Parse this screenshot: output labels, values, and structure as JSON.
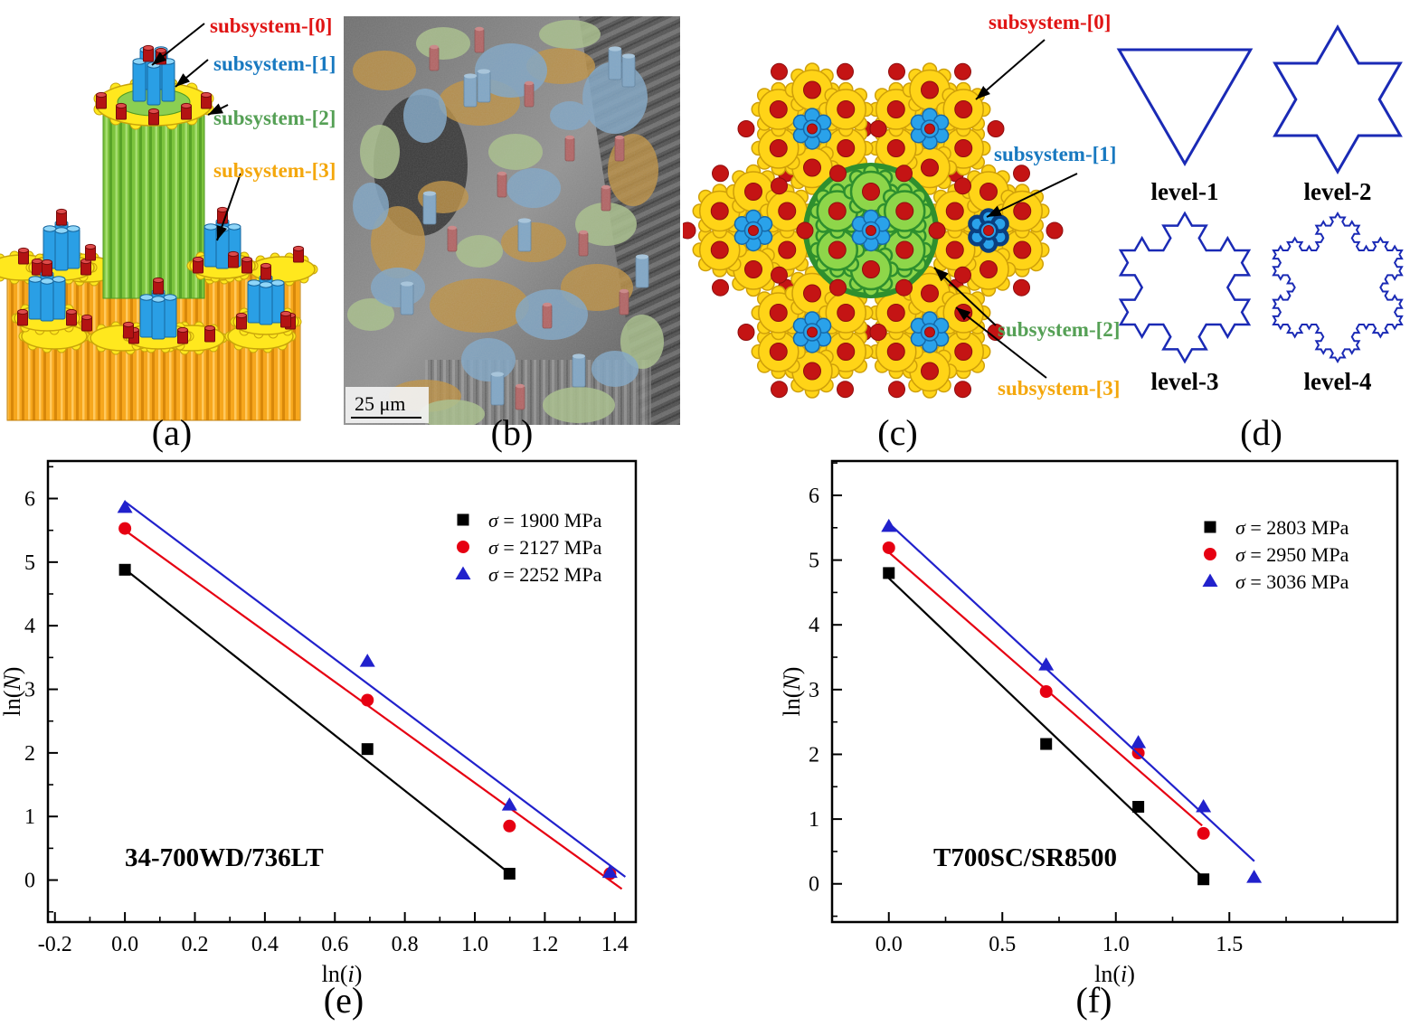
{
  "figure": {
    "panels": {
      "a": {
        "caption": "(a)",
        "labels": [
          {
            "text": "subsystem-[0]",
            "color": "#e01414"
          },
          {
            "text": "subsystem-[1]",
            "color": "#1879c0"
          },
          {
            "text": "subsystem-[2]",
            "color": "#55a055"
          },
          {
            "text": "subsystem-[3]",
            "color": "#f4a70c"
          }
        ]
      },
      "b": {
        "caption": "(b)",
        "scale_bar": "25 μm"
      },
      "c": {
        "caption": "(c)",
        "labels": [
          {
            "text": "subsystem-[0]",
            "color": "#e01414"
          },
          {
            "text": "subsystem-[1]",
            "color": "#1879c0"
          },
          {
            "text": "subsystem-[2]",
            "color": "#55a055"
          },
          {
            "text": "subsystem-[3]",
            "color": "#f4a70c"
          }
        ]
      },
      "d": {
        "caption": "(d)",
        "levels": [
          "level-1",
          "level-2",
          "level-3",
          "level-4"
        ]
      },
      "e": {
        "caption": "(e)"
      },
      "f": {
        "caption": "(f)"
      }
    }
  },
  "chart_data": [
    {
      "id": "e",
      "type": "scatter",
      "annotation": "34-700WD/736LT",
      "xlabel": "ln(i)",
      "ylabel": "ln(N)",
      "xlim": [
        -0.22,
        1.46
      ],
      "ylim": [
        -0.66,
        6.59
      ],
      "xticks": [
        "-0.2",
        "0.0",
        "0.2",
        "0.4",
        "0.6",
        "0.8",
        "1.0",
        "1.2",
        "1.4"
      ],
      "yticks": [
        "0",
        "1",
        "2",
        "3",
        "4",
        "5",
        "6"
      ],
      "x_minor_step": 0.1,
      "y_minor_step": 0.5,
      "grid": false,
      "legend_position": "top-right",
      "series": [
        {
          "name": "σ = 1900 MPa",
          "marker": "square",
          "color": "#000000",
          "x": [
            0,
            0.693,
            1.099
          ],
          "y": [
            4.88,
            2.06,
            0.1
          ],
          "fit_line": [
            [
              0,
              4.89
            ],
            [
              1.1,
              0.1
            ]
          ]
        },
        {
          "name": "σ = 2127 MPa",
          "marker": "circle",
          "color": "#e60012",
          "x": [
            0,
            0.693,
            1.099,
            1.386
          ],
          "y": [
            5.53,
            2.83,
            0.85,
            0.1
          ],
          "fit_line": [
            [
              0,
              5.5
            ],
            [
              1.42,
              -0.14
            ]
          ]
        },
        {
          "name": "σ = 2252 MPa",
          "marker": "triangle",
          "color": "#2121cc",
          "x": [
            0,
            0.693,
            1.099,
            1.386
          ],
          "y": [
            5.86,
            3.44,
            1.18,
            0.12
          ],
          "fit_line": [
            [
              0,
              5.95
            ],
            [
              1.43,
              0.05
            ]
          ]
        }
      ]
    },
    {
      "id": "f",
      "type": "scatter",
      "annotation": "T700SC/SR8500",
      "xlabel": "ln(i)",
      "ylabel": "ln(N)",
      "xlim": [
        -0.25,
        2.24
      ],
      "ylim": [
        -0.59,
        6.53
      ],
      "xticks": [
        "0.0",
        "0.5",
        "1.0",
        "1.5"
      ],
      "yticks": [
        "0",
        "1",
        "2",
        "3",
        "4",
        "5",
        "6"
      ],
      "x_minor_step": 0.25,
      "y_minor_step": 0.5,
      "grid": false,
      "legend_position": "top-right",
      "series": [
        {
          "name": "σ = 2803 MPa",
          "marker": "square",
          "color": "#000000",
          "x": [
            0,
            0.693,
            1.099,
            1.386
          ],
          "y": [
            4.8,
            2.16,
            1.19,
            0.07
          ],
          "fit_line": [
            [
              0,
              4.72
            ],
            [
              1.39,
              0.08
            ]
          ]
        },
        {
          "name": "σ = 2950 MPa",
          "marker": "circle",
          "color": "#e60012",
          "x": [
            0,
            0.693,
            1.099,
            1.386
          ],
          "y": [
            5.19,
            2.97,
            2.02,
            0.78
          ],
          "fit_line": [
            [
              0,
              5.12
            ],
            [
              1.38,
              0.9
            ]
          ]
        },
        {
          "name": "σ = 3036 MPa",
          "marker": "triangle",
          "color": "#2121cc",
          "x": [
            0,
            0.693,
            1.099,
            1.386,
            1.609
          ],
          "y": [
            5.52,
            3.38,
            2.18,
            1.19,
            0.1
          ],
          "fit_line": [
            [
              0,
              5.57
            ],
            [
              1.61,
              0.35
            ]
          ]
        }
      ]
    }
  ]
}
